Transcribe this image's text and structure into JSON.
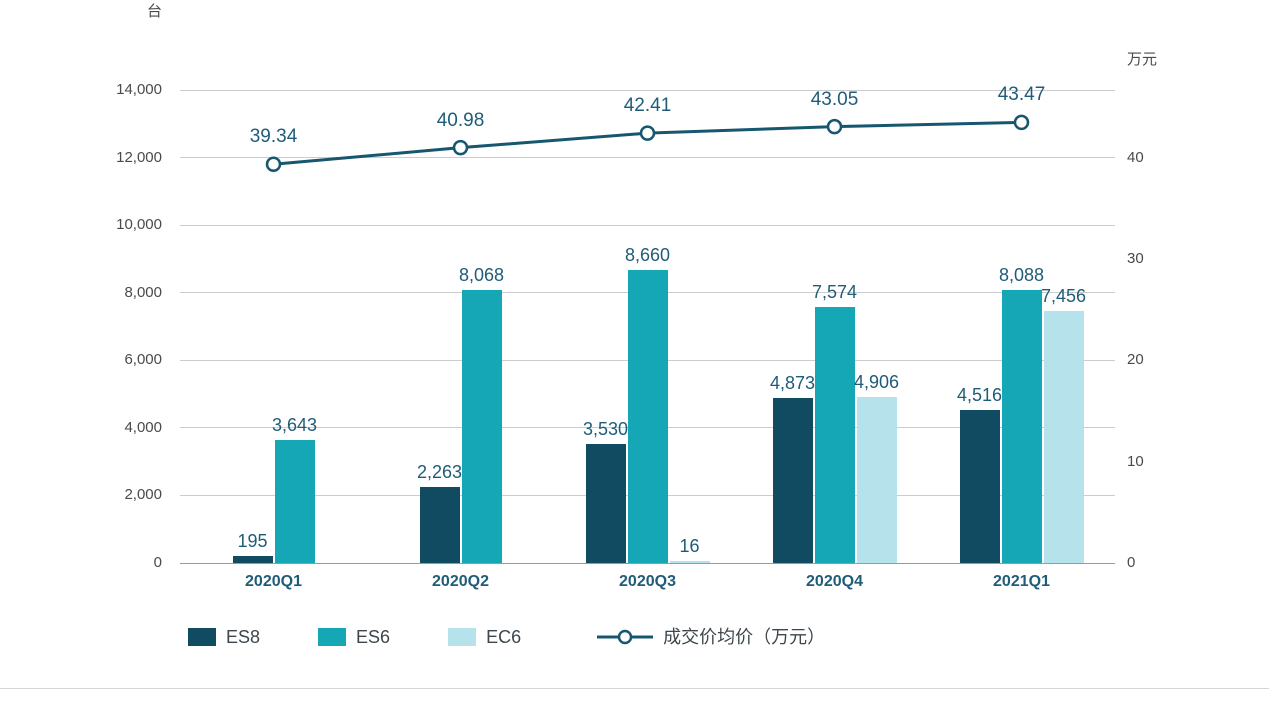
{
  "chart_data": {
    "type": "bar",
    "subtype": "grouped-bar-with-line-overlay",
    "categories": [
      "2020Q1",
      "2020Q2",
      "2020Q3",
      "2020Q4",
      "2021Q1"
    ],
    "bar_series": [
      {
        "name": "ES8",
        "color": "#114b61",
        "values": [
          195,
          2263,
          3530,
          4873,
          4516
        ],
        "labels": [
          "195",
          "2,263",
          "3,530",
          "4,873",
          "4,516"
        ]
      },
      {
        "name": "ES6",
        "color": "#16a7b7",
        "values": [
          3643,
          8068,
          8660,
          7574,
          8088
        ],
        "labels": [
          "3,643",
          "8,068",
          "8,660",
          "7,574",
          "8,088"
        ]
      },
      {
        "name": "EC6",
        "color": "#b6e2ec",
        "values": [
          null,
          null,
          16,
          4906,
          7456
        ],
        "labels": [
          null,
          null,
          "16",
          "4,906",
          "7,456"
        ]
      }
    ],
    "line_series": {
      "name": "成交价均价（万元）",
      "color": "#16576f",
      "axis": "right",
      "marker": "open-circle",
      "values": [
        39.34,
        40.98,
        42.41,
        43.05,
        43.47
      ],
      "labels": [
        "39.34",
        "40.98",
        "42.41",
        "43.05",
        "43.47"
      ]
    },
    "left_axis": {
      "unit": "台",
      "min": 0,
      "max": 14000,
      "tick_step": 2000,
      "tick_labels": [
        "0",
        "2,000",
        "4,000",
        "6,000",
        "8,000",
        "10,000",
        "12,000",
        "14,000"
      ]
    },
    "right_axis": {
      "unit": "万元",
      "min": 0,
      "max": 46.67,
      "tick_values": [
        0,
        10,
        20,
        30,
        40
      ],
      "tick_labels": [
        "0",
        "10",
        "20",
        "30",
        "40"
      ]
    },
    "grid": "horizontal",
    "legend_position": "bottom-left",
    "title": "",
    "xlabel": "",
    "ylabel": ""
  },
  "colors": {
    "background": "#ffffff",
    "grid_line": "#cccccc",
    "axis_line": "#9a9a9a",
    "value_label_text": "#1f5c78",
    "category_label_text": "#1f5c78",
    "tick_label_text": "#4a4a4a",
    "legend_text": "#3c464c",
    "bottom_divider": "#d6d6d6"
  }
}
